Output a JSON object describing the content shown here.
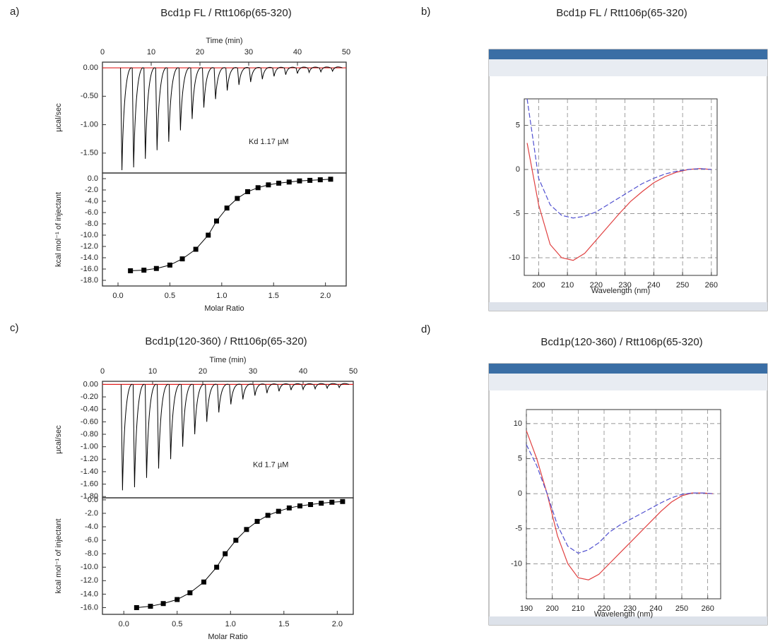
{
  "panels": [
    {
      "label": "a)",
      "title": "Bcd1p FL / Rtt106p(65-320)"
    },
    {
      "label": "b)",
      "title": "Bcd1p FL / Rtt106p(65-320)"
    },
    {
      "label": "c)",
      "title": "Bcd1p(120-360) / Rtt106p(65-320)"
    },
    {
      "label": "d)",
      "title": "Bcd1p(120-360) / Rtt106p(65-320)"
    }
  ],
  "chart_data": [
    {
      "type": "itc-raw",
      "xlabel": "Time (min)",
      "ylabel": "µcal/sec",
      "annotation": "Kd  1.17 µM",
      "color": "#000000",
      "x": [
        4,
        6.4,
        8.8,
        11.2,
        13.6,
        16,
        18.4,
        20.8,
        23.2,
        25.6,
        28,
        30.4,
        32.8,
        35.2,
        37.6,
        40,
        42.4,
        44.8,
        47.2
      ],
      "values": [
        -1.8,
        -1.75,
        -1.6,
        -1.45,
        -1.3,
        -1.1,
        -0.9,
        -0.7,
        -0.55,
        -0.4,
        -0.3,
        -0.25,
        -0.2,
        -0.15,
        -0.12,
        -0.1,
        -0.08,
        -0.07,
        -0.06
      ],
      "xlim": [
        0,
        50
      ],
      "xticks": [
        0,
        10,
        20,
        30,
        40,
        50
      ],
      "ylim": [
        -1.85,
        0.1
      ],
      "yticks": [
        {
          "value": 0,
          "label": "0.00"
        },
        {
          "value": -0.5,
          "label": "-0.50"
        },
        {
          "value": -1,
          "label": "-1.00"
        },
        {
          "value": -1.5,
          "label": "-1.50"
        }
      ]
    },
    {
      "type": "itc-binding",
      "xlabel": "Molar Ratio",
      "ylabel": "kcal mol⁻¹ of injectant",
      "color": "#000000",
      "x": [
        0.12,
        0.25,
        0.37,
        0.5,
        0.62,
        0.75,
        0.87,
        0.95,
        1.05,
        1.15,
        1.25,
        1.35,
        1.45,
        1.55,
        1.65,
        1.75,
        1.85,
        1.95,
        2.05
      ],
      "values": [
        -16.3,
        -16.2,
        -15.9,
        -15.3,
        -14.2,
        -12.5,
        -10,
        -7.5,
        -5.2,
        -3.5,
        -2.3,
        -1.6,
        -1.1,
        -0.8,
        -0.6,
        -0.4,
        -0.3,
        -0.2,
        -0.1
      ],
      "xlim": [
        -0.15,
        2.2
      ],
      "xticks": [
        {
          "value": 0,
          "label": "0.0"
        },
        0.5,
        {
          "value": 1,
          "label": "1.0"
        },
        1.5,
        {
          "value": 2,
          "label": "2.0"
        }
      ],
      "ylim": [
        -19,
        1
      ],
      "yticks": [
        {
          "value": 0,
          "label": "0.0"
        },
        {
          "value": -2,
          "label": "-2.0"
        },
        {
          "value": -4,
          "label": "-4.0"
        },
        {
          "value": -6,
          "label": "-6.0"
        },
        {
          "value": -8,
          "label": "-8.0"
        },
        {
          "value": -10,
          "label": "-10.0"
        },
        {
          "value": -12,
          "label": "-12.0"
        },
        {
          "value": -14,
          "label": "-14.0"
        },
        {
          "value": -16,
          "label": "-16.0"
        },
        {
          "value": -18,
          "label": "-18.0"
        }
      ]
    },
    {
      "type": "line",
      "xlabel": "Wavelength (nm)",
      "grid": true,
      "x": [
        196,
        200,
        204,
        208,
        212,
        216,
        220,
        224,
        228,
        232,
        236,
        240,
        244,
        248,
        252,
        256,
        260
      ],
      "series": [
        {
          "color": "#e04040",
          "values": [
            3,
            -4,
            -8.5,
            -10,
            -10.3,
            -9.5,
            -8,
            -6.5,
            -5,
            -3.6,
            -2.5,
            -1.5,
            -0.8,
            -0.3,
            0,
            0.1,
            0
          ]
        },
        {
          "color": "#5050d0",
          "values": [
            8,
            -1,
            -4,
            -5.2,
            -5.5,
            -5.3,
            -4.8,
            -4,
            -3.2,
            -2.4,
            -1.6,
            -1,
            -0.5,
            -0.2,
            0,
            0.1,
            0
          ]
        }
      ],
      "xlim": [
        195,
        262
      ],
      "xticks": [
        200,
        210,
        220,
        230,
        240,
        250,
        260
      ],
      "ylim": [
        -12,
        8
      ],
      "yticks": [
        -10,
        -5,
        0,
        5
      ]
    },
    {
      "type": "itc-raw",
      "xlabel": "Time (min)",
      "ylabel": "µcal/sec",
      "annotation": "Kd  1.7 µM",
      "color": "#000000",
      "x": [
        4,
        6.4,
        8.8,
        11.2,
        13.6,
        16,
        18.4,
        20.8,
        23.2,
        25.6,
        28,
        30.4,
        32.8,
        35.2,
        37.6,
        40,
        42.4,
        44.8,
        47.2
      ],
      "values": [
        -1.7,
        -1.65,
        -1.5,
        -1.35,
        -1.2,
        -1,
        -0.8,
        -0.6,
        -0.45,
        -0.32,
        -0.24,
        -0.18,
        -0.14,
        -0.11,
        -0.09,
        -0.08,
        -0.07,
        -0.06,
        -0.05
      ],
      "xlim": [
        0,
        50
      ],
      "xticks": [
        0,
        10,
        20,
        30,
        40,
        50
      ],
      "ylim": [
        -1.82,
        0.05
      ],
      "yticks": [
        {
          "value": 0,
          "label": "0.00"
        },
        {
          "value": -0.2,
          "label": "-0.20"
        },
        {
          "value": -0.4,
          "label": "-0.40"
        },
        {
          "value": -0.6,
          "label": "-0.60"
        },
        {
          "value": -0.8,
          "label": "-0.80"
        },
        {
          "value": -1,
          "label": "-1.00"
        },
        {
          "value": -1.2,
          "label": "-1.20"
        },
        {
          "value": -1.4,
          "label": "-1.40"
        },
        {
          "value": -1.6,
          "label": "-1.60"
        },
        {
          "value": -1.8,
          "label": "-1.80"
        }
      ]
    },
    {
      "type": "itc-binding",
      "xlabel": "Molar Ratio",
      "ylabel": "kcal mol⁻¹ of injectant",
      "color": "#000000",
      "x": [
        0.12,
        0.25,
        0.37,
        0.5,
        0.62,
        0.75,
        0.87,
        0.95,
        1.05,
        1.15,
        1.25,
        1.35,
        1.45,
        1.55,
        1.65,
        1.75,
        1.85,
        1.95,
        2.05
      ],
      "values": [
        -16,
        -15.8,
        -15.4,
        -14.8,
        -13.8,
        -12.2,
        -10,
        -8,
        -6,
        -4.4,
        -3.2,
        -2.3,
        -1.7,
        -1.2,
        -0.9,
        -0.7,
        -0.5,
        -0.35,
        -0.25
      ],
      "xlim": [
        -0.2,
        2.15
      ],
      "xticks": [
        {
          "value": 0,
          "label": "0.0"
        },
        0.5,
        {
          "value": 1,
          "label": "1.0"
        },
        1.5,
        {
          "value": 2,
          "label": "2.0"
        }
      ],
      "ylim": [
        -17,
        0.3
      ],
      "yticks": [
        {
          "value": 0,
          "label": "0.0"
        },
        {
          "value": -2,
          "label": "-2.0"
        },
        {
          "value": -4,
          "label": "-4.0"
        },
        {
          "value": -6,
          "label": "-6.0"
        },
        {
          "value": -8,
          "label": "-8.0"
        },
        {
          "value": -10,
          "label": "-10.0"
        },
        {
          "value": -12,
          "label": "-12.0"
        },
        {
          "value": -14,
          "label": "-14.0"
        },
        {
          "value": -16,
          "label": "-16.0"
        }
      ]
    },
    {
      "type": "line",
      "xlabel": "Wavelength (nm)",
      "grid": true,
      "x": [
        190,
        194,
        198,
        202,
        206,
        210,
        214,
        218,
        222,
        226,
        230,
        234,
        238,
        242,
        246,
        250,
        254,
        258,
        262
      ],
      "series": [
        {
          "color": "#e04040",
          "values": [
            9,
            5,
            0,
            -6,
            -10,
            -12,
            -12.3,
            -11.5,
            -10,
            -8.5,
            -7,
            -5.5,
            -4,
            -2.5,
            -1.2,
            -0.3,
            0.1,
            0.1,
            0
          ]
        },
        {
          "color": "#5050d0",
          "values": [
            7,
            4,
            0,
            -4.5,
            -7.5,
            -8.5,
            -8,
            -7,
            -5.5,
            -4.5,
            -3.7,
            -2.9,
            -2.1,
            -1.3,
            -0.6,
            -0.1,
            0.1,
            0.1,
            0
          ]
        }
      ],
      "xlim": [
        190,
        265
      ],
      "xticks": [
        190,
        200,
        210,
        220,
        230,
        240,
        250,
        260
      ],
      "ylim": [
        -15,
        12
      ],
      "yticks": [
        -10,
        -5,
        0,
        5,
        10
      ]
    }
  ]
}
